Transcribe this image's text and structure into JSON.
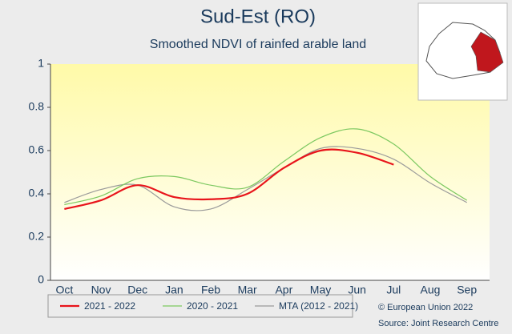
{
  "chart_data": {
    "type": "line",
    "title": "Sud-Est (RO)",
    "subtitle": "Smoothed NDVI of rainfed arable land",
    "categories": [
      "Oct",
      "Nov",
      "Dec",
      "Jan",
      "Feb",
      "Mar",
      "Apr",
      "May",
      "Jun",
      "Jul",
      "Aug",
      "Sep"
    ],
    "series": [
      {
        "name": "2021 - 2022",
        "color": "#e8141b",
        "values": [
          0.33,
          0.37,
          0.44,
          0.385,
          0.375,
          0.4,
          0.52,
          0.6,
          0.59,
          0.535,
          null,
          null
        ]
      },
      {
        "name": "2020 - 2021",
        "color": "#7cc860",
        "values": [
          0.35,
          0.39,
          0.47,
          0.48,
          0.44,
          0.43,
          0.55,
          0.66,
          0.7,
          0.63,
          0.48,
          0.37
        ]
      },
      {
        "name": "MTA (2012 - 2021)",
        "color": "#9a9a9a",
        "values": [
          0.36,
          0.42,
          0.44,
          0.34,
          0.33,
          0.42,
          0.52,
          0.61,
          0.61,
          0.56,
          0.45,
          0.36
        ]
      }
    ],
    "ylim": [
      0,
      1
    ],
    "yticks": [
      0,
      0.2,
      0.4,
      0.6,
      0.8,
      1
    ],
    "grid": false,
    "legend": "bottom",
    "annotations": [
      "© European Union 2022",
      "Source: Joint Research Centre"
    ]
  }
}
